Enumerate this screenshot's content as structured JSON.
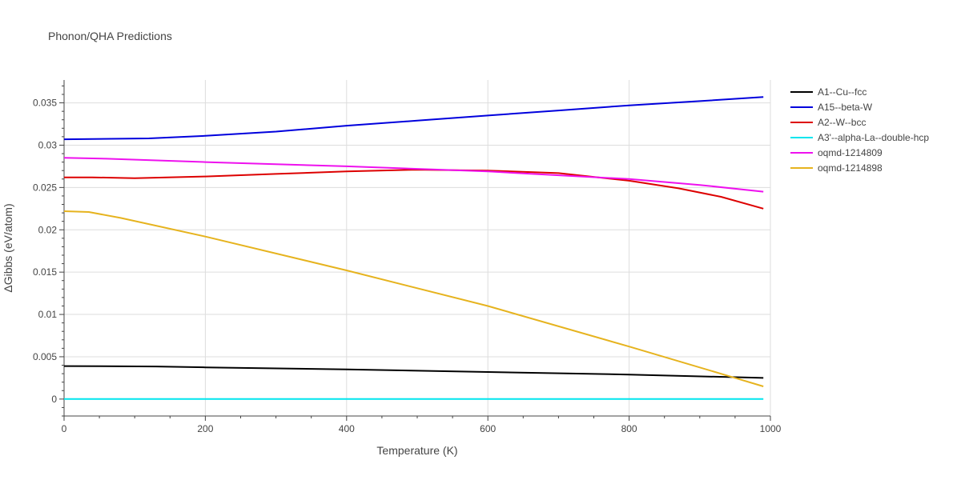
{
  "chart_data": {
    "type": "line",
    "title": "Phonon/QHA Predictions",
    "xlabel": "Temperature (K)",
    "ylabel": "ΔGibbs (eV/atom)",
    "xlim": [
      0,
      1000
    ],
    "ylim": [
      -0.002,
      0.0377
    ],
    "x_ticks": [
      0,
      200,
      400,
      600,
      800,
      1000
    ],
    "x_tick_labels": [
      "0",
      "200",
      "400",
      "600",
      "800",
      "1000"
    ],
    "y_ticks": [
      0,
      0.005,
      0.01,
      0.015,
      0.02,
      0.025,
      0.03,
      0.035
    ],
    "y_tick_labels": [
      "0",
      "0.005",
      "0.01",
      "0.015",
      "0.02",
      "0.025",
      "0.03",
      "0.035"
    ],
    "grid": true,
    "legend_position": "top-right",
    "series": [
      {
        "name": "A1--Cu--fcc",
        "color": "#000000",
        "x": [
          0,
          130,
          200,
          400,
          600,
          800,
          990
        ],
        "y": [
          0.0039,
          0.00385,
          0.00375,
          0.0035,
          0.0032,
          0.0029,
          0.0025
        ]
      },
      {
        "name": "A15--beta-W",
        "color": "#0000dd",
        "x": [
          0,
          120,
          200,
          300,
          400,
          500,
          600,
          700,
          800,
          900,
          990
        ],
        "y": [
          0.0307,
          0.0308,
          0.0311,
          0.0316,
          0.0323,
          0.0329,
          0.0335,
          0.0341,
          0.0347,
          0.0352,
          0.0357
        ]
      },
      {
        "name": "A2--W--bcc",
        "color": "#dd0000",
        "x": [
          0,
          40,
          100,
          200,
          300,
          400,
          500,
          600,
          700,
          800,
          870,
          930,
          990
        ],
        "y": [
          0.0262,
          0.0262,
          0.0261,
          0.0263,
          0.0266,
          0.0269,
          0.0271,
          0.027,
          0.0267,
          0.0258,
          0.0249,
          0.0239,
          0.0225
        ]
      },
      {
        "name": "A3'--alpha-La--double-hcp",
        "color": "#00e5ee",
        "x": [
          0,
          990
        ],
        "y": [
          0,
          0
        ]
      },
      {
        "name": "oqmd-1214809",
        "color": "#ee11ee",
        "x": [
          0,
          60,
          200,
          400,
          600,
          800,
          900,
          990
        ],
        "y": [
          0.0285,
          0.0284,
          0.028,
          0.0275,
          0.0269,
          0.026,
          0.0253,
          0.0245
        ]
      },
      {
        "name": "oqmd-1214898",
        "color": "#e6b31e",
        "x": [
          0,
          35,
          80,
          200,
          400,
          600,
          800,
          950,
          990
        ],
        "y": [
          0.0222,
          0.0221,
          0.0214,
          0.0192,
          0.0152,
          0.011,
          0.0062,
          0.0025,
          0.0015
        ]
      }
    ]
  }
}
